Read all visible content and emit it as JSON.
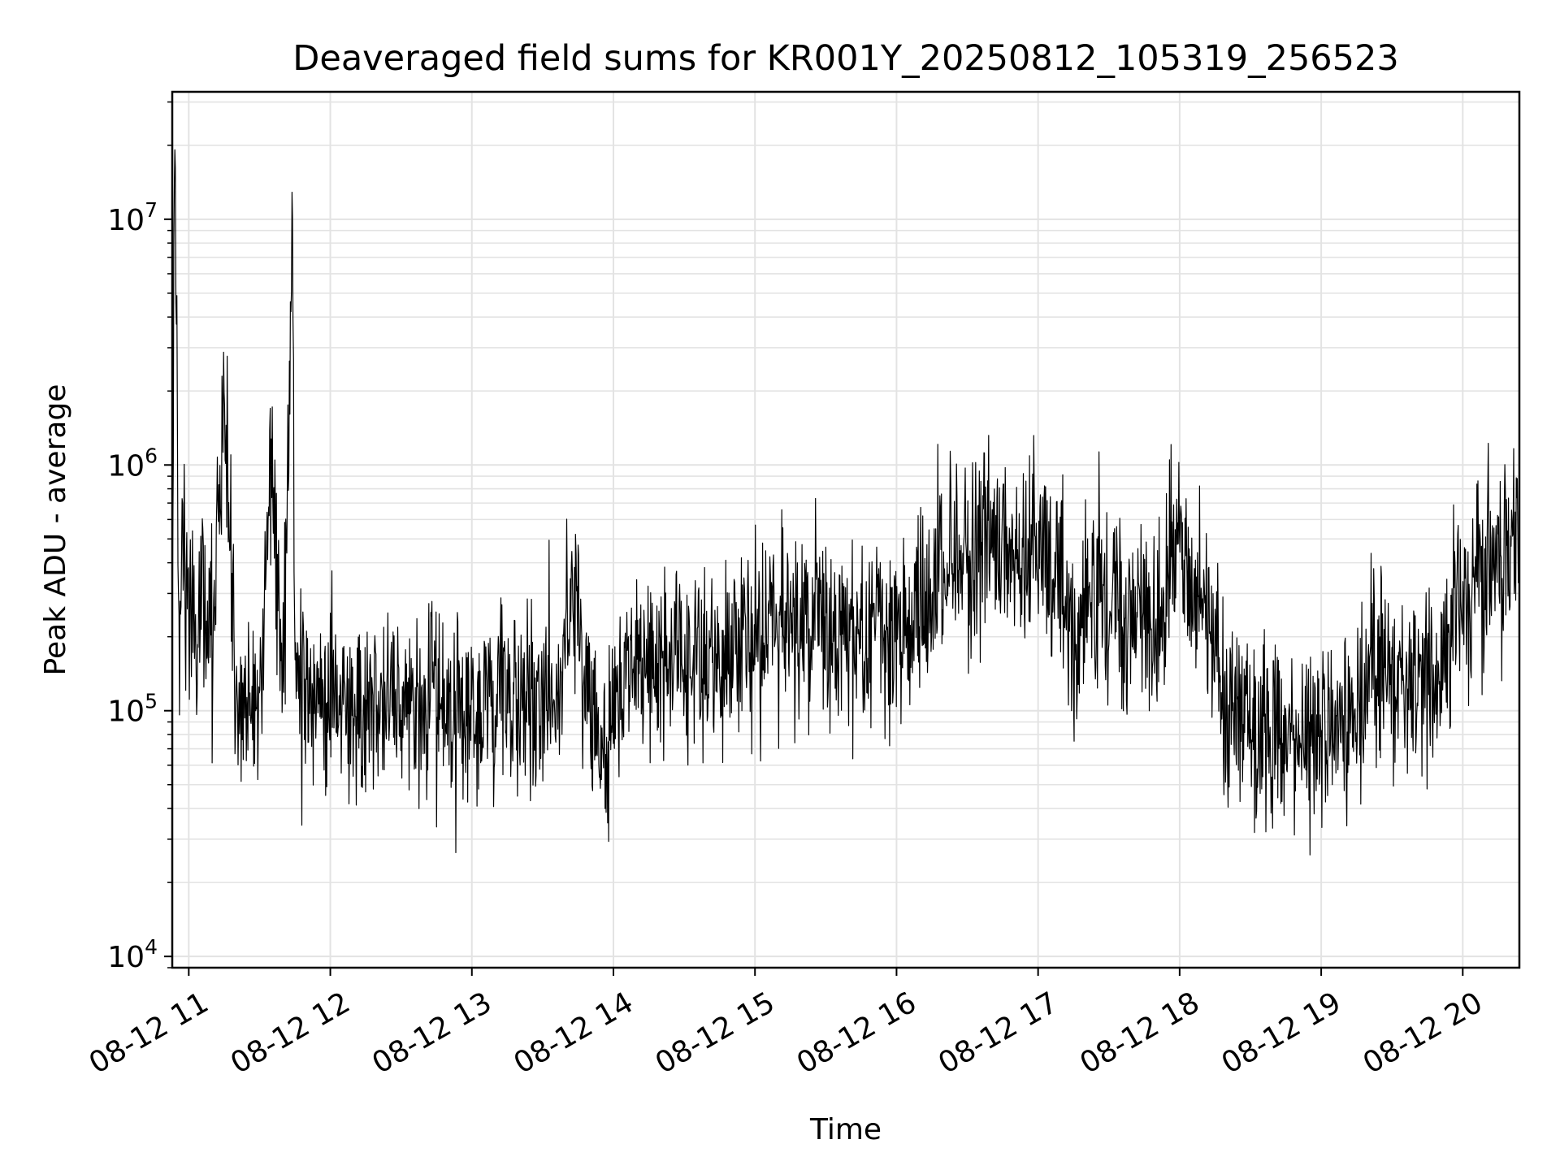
{
  "chart_data": {
    "type": "line",
    "title": "Deaveraged field sums for KR001Y_20250812_105319_256523",
    "xlabel": "Time",
    "ylabel": "Peak ADU - average",
    "yscale": "log",
    "xlim": [
      "2025-08-12 10:53",
      "2025-08-12 20:24"
    ],
    "ylim": [
      9000,
      33000000
    ],
    "grid": true,
    "line_color": "#000000",
    "x_ticks": [
      "08-12 11",
      "08-12 12",
      "08-12 13",
      "08-12 14",
      "08-12 15",
      "08-12 16",
      "08-12 17",
      "08-12 18",
      "08-12 19",
      "08-12 20"
    ],
    "y_ticks": [
      {
        "base": "10",
        "exp": "4",
        "value": 10000
      },
      {
        "base": "10",
        "exp": "5",
        "value": 100000
      },
      {
        "base": "10",
        "exp": "6",
        "value": 1000000
      },
      {
        "base": "10",
        "exp": "7",
        "value": 10000000
      }
    ],
    "series": [
      {
        "x": [
          "10:53",
          "10:54",
          "10:56",
          "10:58",
          "11:00",
          "11:05",
          "11:10",
          "11:15",
          "11:20",
          "11:25",
          "11:30",
          "11:35",
          "11:40",
          "11:44",
          "11:45",
          "11:50",
          "11:55",
          "12:00",
          "12:10",
          "12:20",
          "12:30",
          "12:40",
          "12:50",
          "13:00",
          "13:10",
          "13:20",
          "13:30",
          "13:38",
          "13:40",
          "13:45",
          "13:50",
          "13:55",
          "14:00",
          "14:05",
          "14:10",
          "14:20",
          "14:30",
          "14:40",
          "14:50",
          "15:00",
          "15:10",
          "15:20",
          "15:30",
          "15:40",
          "15:50",
          "16:00",
          "16:10",
          "16:20",
          "16:30",
          "16:40",
          "16:50",
          "17:00",
          "17:10",
          "17:15",
          "17:20",
          "17:30",
          "17:40",
          "17:50",
          "18:00",
          "18:10",
          "18:20",
          "18:30",
          "18:40",
          "18:50",
          "18:55",
          "19:00",
          "19:10",
          "19:20",
          "19:30",
          "19:40",
          "19:50",
          "20:00",
          "20:10",
          "20:20",
          "20:24"
        ],
        "y": [
          300000,
          24000000,
          250000,
          400000,
          300000,
          200000,
          250000,
          2000000,
          150000,
          100000,
          110000,
          1300000,
          110000,
          10500000,
          150000,
          120000,
          100000,
          100000,
          100000,
          110000,
          100000,
          120000,
          100000,
          100000,
          110000,
          100000,
          110000,
          120000,
          250000,
          200000,
          100000,
          60000,
          90000,
          150000,
          130000,
          150000,
          150000,
          160000,
          180000,
          200000,
          220000,
          230000,
          210000,
          200000,
          180000,
          200000,
          250000,
          400000,
          450000,
          500000,
          420000,
          400000,
          350000,
          200000,
          300000,
          280000,
          250000,
          220000,
          500000,
          250000,
          100000,
          80000,
          70000,
          70000,
          80000,
          80000,
          100000,
          150000,
          130000,
          140000,
          160000,
          300000,
          350000,
          450000,
          500000
        ]
      }
    ]
  }
}
